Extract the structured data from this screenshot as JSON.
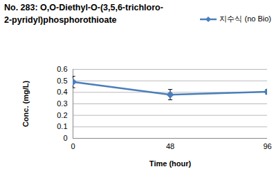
{
  "chart_data": {
    "type": "line",
    "title": "No. 283: O,O-Diethyl-O-(3,5,6-trichloro-\n2-pyridyl)phosphorothioate",
    "x_label": "Time (hour)",
    "y_label": "Conc. (mg/L)",
    "x": [
      0,
      48,
      96
    ],
    "series": [
      {
        "name": "지수식 (no Bio)",
        "color": "#4a7ebb",
        "marker": "diamond",
        "values": [
          0.49,
          0.38,
          0.405
        ],
        "errors": [
          0.05,
          0.045,
          0.02
        ]
      }
    ],
    "xlim": [
      0,
      96
    ],
    "xticks": [
      0,
      48,
      96
    ],
    "ylim": [
      0,
      0.6
    ],
    "yticks": [
      0,
      0.1,
      0.2,
      0.3,
      0.4,
      0.5,
      0.6
    ],
    "grid": true,
    "legend": "top-right"
  }
}
